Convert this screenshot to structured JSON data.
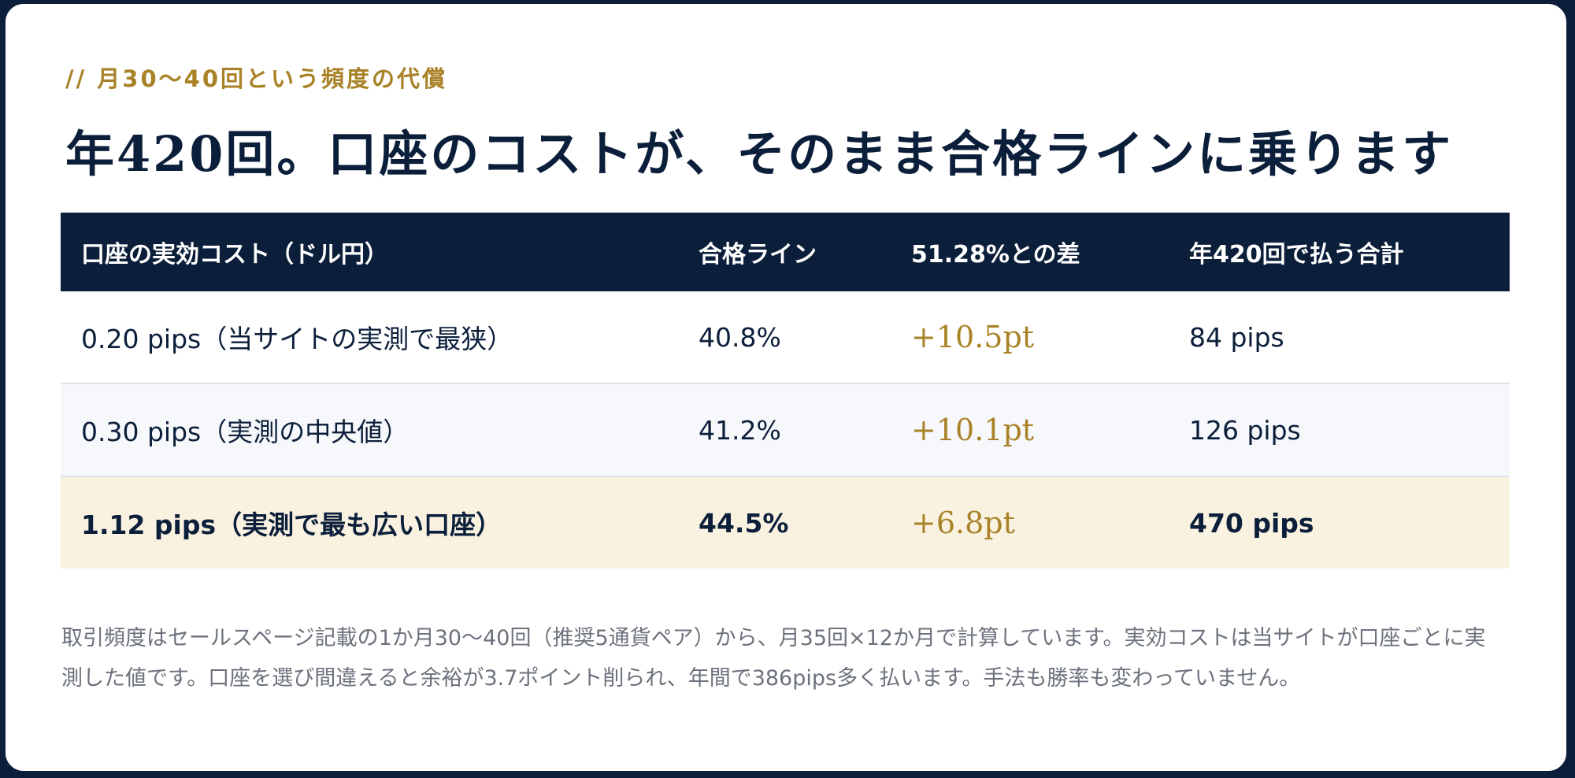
{
  "eyebrow": "// 月30〜40回という頻度の代償",
  "title": "年420回。口座のコストが、そのまま合格ラインに乗ります",
  "table": {
    "headers": [
      "口座の実効コスト（ドル円）",
      "合格ライン",
      "51.28%との差",
      "年420回で払う合計"
    ],
    "rows": [
      [
        "0.20 pips（当サイトの実測で最狭）",
        "40.8%",
        "+10.5pt",
        "84 pips"
      ],
      [
        "0.30 pips（実測の中央値）",
        "41.2%",
        "+10.1pt",
        "126 pips"
      ],
      [
        "1.12 pips（実測で最も広い口座）",
        "44.5%",
        "+6.8pt",
        "470 pips"
      ]
    ]
  },
  "note": "取引頻度はセールスページ記載の1か月30〜40回（推奨5通貨ペア）から、月35回×12か月で計算しています。実効コストは当サイトが口座ごとに実測した値です。口座を選び間違えると余裕が3.7ポイント削られ、年間で386pips多く払います。手法も勝率も変わっていません。",
  "colors": {
    "navy": "#0c1f3a",
    "gold": "#a98228",
    "highlight_row": "#faf2e1",
    "zebra_row": "#f6f8fb"
  }
}
